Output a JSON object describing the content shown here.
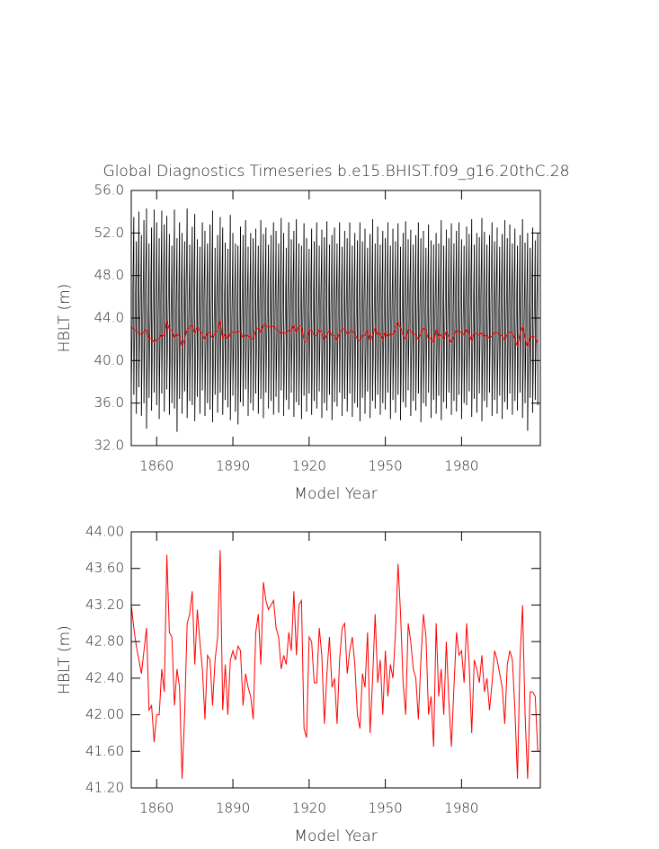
{
  "chart_data": [
    {
      "type": "line",
      "title": "Global Diagnostics Timeseries b.e15.BHIST.f09_g16.20thC.28",
      "ylabel": "HBLT (m)",
      "xlabel": "Model Year",
      "xlim": [
        1850,
        2011
      ],
      "xticks": [
        1860,
        1890,
        1920,
        1950,
        1980
      ],
      "ylim": [
        32,
        56
      ],
      "yticks": [
        {
          "value": 32,
          "label": "32.0"
        },
        {
          "value": 36,
          "label": "36.0"
        },
        {
          "value": 40,
          "label": "40.0"
        },
        {
          "value": 44,
          "label": "44.0"
        },
        {
          "value": 48,
          "label": "48.0"
        },
        {
          "value": 52,
          "label": "52.0"
        },
        {
          "value": 56,
          "label": "56.0"
        }
      ],
      "x": [
        1850,
        1851,
        1852,
        1853,
        1854,
        1855,
        1856,
        1857,
        1858,
        1859,
        1860,
        1861,
        1862,
        1863,
        1864,
        1865,
        1866,
        1867,
        1868,
        1869,
        1870,
        1871,
        1872,
        1873,
        1874,
        1875,
        1876,
        1877,
        1878,
        1879,
        1880,
        1881,
        1882,
        1883,
        1884,
        1885,
        1886,
        1887,
        1888,
        1889,
        1890,
        1891,
        1892,
        1893,
        1894,
        1895,
        1896,
        1897,
        1898,
        1899,
        1900,
        1901,
        1902,
        1903,
        1904,
        1905,
        1906,
        1907,
        1908,
        1909,
        1910,
        1911,
        1912,
        1913,
        1914,
        1915,
        1916,
        1917,
        1918,
        1919,
        1920,
        1921,
        1922,
        1923,
        1924,
        1925,
        1926,
        1927,
        1928,
        1929,
        1930,
        1931,
        1932,
        1933,
        1934,
        1935,
        1936,
        1937,
        1938,
        1939,
        1940,
        1941,
        1942,
        1943,
        1944,
        1945,
        1946,
        1947,
        1948,
        1949,
        1950,
        1951,
        1952,
        1953,
        1954,
        1955,
        1956,
        1957,
        1958,
        1959,
        1960,
        1961,
        1962,
        1963,
        1964,
        1965,
        1966,
        1967,
        1968,
        1969,
        1970,
        1971,
        1972,
        1973,
        1974,
        1975,
        1976,
        1977,
        1978,
        1979,
        1980,
        1981,
        1982,
        1983,
        1984,
        1985,
        1986,
        1987,
        1988,
        1989,
        1990,
        1991,
        1992,
        1993,
        1994,
        1995,
        1996,
        1997,
        1998,
        1999,
        2000,
        2001,
        2002,
        2003,
        2004,
        2005,
        2006,
        2007,
        2008,
        2009,
        2010
      ],
      "series": [
        {
          "color": "#000000",
          "max": [
            50.5,
            53.5,
            51.2,
            54.0,
            51.8,
            53.2,
            54.3,
            51.0,
            52.5,
            54.2,
            53.0,
            51.5,
            54.1,
            52.8,
            53.6,
            51.9,
            50.8,
            54.2,
            51.5,
            53.0,
            52.0,
            51.2,
            54.3,
            50.9,
            52.6,
            53.8,
            51.4,
            50.7,
            53.0,
            52.2,
            51.0,
            52.8,
            54.1,
            50.6,
            51.8,
            53.5,
            52.5,
            51.1,
            50.5,
            53.7,
            52.0,
            51.0,
            50.8,
            52.6,
            51.8,
            53.2,
            50.7,
            52.0,
            51.5,
            52.4,
            50.8,
            53.2,
            51.9,
            52.5,
            50.9,
            51.8,
            53.0,
            52.2,
            51.0,
            53.4,
            52.0,
            50.6,
            53.0,
            51.4,
            52.2,
            53.3,
            51.0,
            50.8,
            52.9,
            51.5,
            50.5,
            52.4,
            51.2,
            53.0,
            50.8,
            52.3,
            51.6,
            53.1,
            50.9,
            51.8,
            52.5,
            51.0,
            53.0,
            50.7,
            52.2,
            51.5,
            53.0,
            50.8,
            52.0,
            51.3,
            53.0,
            51.2,
            52.4,
            50.6,
            51.9,
            53.3,
            51.0,
            52.6,
            50.9,
            52.2,
            51.5,
            53.0,
            50.8,
            52.4,
            51.2,
            52.9,
            50.7,
            52.0,
            53.1,
            51.4,
            52.3,
            50.9,
            51.8,
            53.0,
            51.5,
            52.2,
            50.6,
            52.8,
            51.3,
            50.9,
            52.0,
            51.0,
            53.2,
            50.8,
            52.3,
            51.5,
            52.9,
            51.0,
            52.2,
            53.0,
            51.4,
            50.8,
            52.6,
            51.9,
            53.3,
            50.9,
            52.0,
            51.6,
            53.4,
            52.1,
            50.9,
            51.8,
            53.0,
            51.2,
            52.5,
            50.7,
            51.9,
            53.2,
            51.5,
            52.8,
            51.0,
            52.4,
            50.8,
            51.8,
            53.3,
            51.1,
            52.0,
            50.6,
            52.5,
            51.3,
            52.0
          ],
          "min": [
            36.2,
            36.8,
            35.0,
            37.5,
            34.8,
            36.0,
            33.6,
            36.5,
            35.3,
            37.0,
            35.8,
            34.5,
            36.9,
            35.2,
            37.3,
            34.9,
            36.0,
            35.5,
            33.3,
            36.4,
            35.0,
            37.1,
            34.6,
            36.2,
            35.8,
            34.3,
            36.6,
            35.0,
            37.2,
            34.8,
            36.0,
            35.4,
            34.2,
            36.8,
            35.1,
            37.0,
            34.9,
            36.3,
            35.6,
            34.4,
            36.7,
            35.2,
            34.0,
            36.1,
            35.7,
            37.3,
            34.8,
            36.0,
            35.3,
            36.9,
            35.0,
            36.4,
            34.6,
            37.0,
            35.5,
            36.2,
            34.9,
            36.6,
            35.1,
            37.2,
            34.8,
            36.3,
            35.4,
            37.0,
            34.7,
            36.1,
            35.8,
            34.5,
            36.7,
            35.2,
            36.9,
            34.9,
            36.2,
            35.5,
            37.1,
            34.6,
            36.0,
            35.3,
            36.8,
            34.4,
            36.1,
            35.7,
            37.0,
            34.8,
            36.4,
            35.2,
            36.9,
            34.7,
            36.0,
            35.6,
            34.3,
            36.5,
            35.0,
            37.1,
            34.6,
            36.2,
            35.5,
            36.8,
            34.9,
            36.0,
            35.4,
            37.0,
            34.5,
            36.3,
            35.1,
            36.8,
            34.4,
            36.1,
            35.6,
            37.2,
            34.8,
            36.2,
            35.3,
            36.9,
            34.2,
            36.0,
            35.7,
            37.0,
            34.6,
            36.3,
            35.0,
            36.7,
            34.4,
            36.1,
            35.5,
            37.0,
            34.9,
            36.2,
            35.2,
            36.8,
            34.5,
            36.0,
            35.8,
            37.1,
            34.7,
            36.4,
            35.1,
            36.9,
            34.3,
            36.2,
            35.6,
            37.0,
            34.8,
            36.3,
            35.0,
            36.7,
            34.5,
            36.1,
            35.4,
            36.9,
            34.9,
            36.2,
            35.3,
            37.0,
            34.6,
            36.0,
            33.4,
            36.5,
            35.1,
            36.3,
            35.8
          ]
        },
        {
          "color": "#ff0000",
          "values": [
            43.2,
            42.95,
            42.75,
            42.6,
            42.45,
            42.7,
            42.95,
            42.05,
            42.1,
            41.7,
            42.0,
            42.0,
            42.5,
            42.25,
            43.75,
            42.9,
            42.85,
            42.1,
            42.5,
            42.3,
            41.3,
            42.0,
            43.0,
            43.1,
            43.35,
            42.55,
            43.15,
            42.8,
            42.5,
            41.95,
            42.65,
            42.6,
            42.1,
            42.6,
            42.85,
            43.8,
            42.05,
            42.55,
            42.0,
            42.6,
            42.7,
            42.6,
            42.75,
            42.7,
            42.1,
            42.45,
            42.3,
            42.2,
            41.95,
            42.9,
            43.1,
            42.55,
            43.45,
            43.25,
            43.15,
            43.2,
            43.25,
            42.95,
            42.85,
            42.5,
            42.65,
            42.55,
            42.9,
            42.7,
            43.35,
            42.65,
            43.2,
            43.25,
            41.85,
            41.75,
            42.85,
            42.8,
            42.35,
            42.35,
            42.95,
            42.65,
            41.9,
            42.45,
            42.85,
            42.3,
            42.4,
            41.9,
            42.6,
            42.95,
            43.0,
            42.45,
            42.7,
            42.85,
            42.55,
            42.0,
            41.85,
            42.45,
            42.3,
            42.9,
            41.8,
            42.4,
            43.1,
            42.35,
            42.6,
            42.0,
            42.7,
            42.2,
            42.55,
            42.4,
            42.9,
            43.65,
            43.1,
            42.35,
            42.0,
            43.0,
            42.8,
            42.5,
            42.4,
            41.95,
            42.6,
            43.1,
            42.85,
            42.0,
            42.2,
            41.65,
            43.0,
            42.2,
            42.5,
            42.0,
            42.8,
            42.15,
            41.65,
            42.3,
            42.9,
            42.65,
            42.7,
            42.35,
            43.0,
            42.55,
            41.8,
            42.6,
            42.5,
            42.35,
            42.65,
            42.25,
            42.4,
            42.05,
            42.35,
            42.7,
            42.6,
            42.45,
            42.3,
            41.9,
            42.55,
            42.7,
            42.6,
            42.05,
            41.3,
            42.6,
            43.2,
            42.0,
            41.3,
            42.25,
            42.25,
            42.2,
            41.6
          ]
        }
      ]
    },
    {
      "type": "line",
      "ylabel": "HBLT (m)",
      "xlabel": "Model Year",
      "xlim": [
        1850,
        2011
      ],
      "xticks": [
        1860,
        1890,
        1920,
        1950,
        1980
      ],
      "ylim": [
        41.2,
        44
      ],
      "yticks": [
        {
          "value": 41.2,
          "label": "41.20"
        },
        {
          "value": 41.6,
          "label": "41.60"
        },
        {
          "value": 42,
          "label": "42.00"
        },
        {
          "value": 42.4,
          "label": "42.40"
        },
        {
          "value": 42.8,
          "label": "42.80"
        },
        {
          "value": 43.2,
          "label": "43.20"
        },
        {
          "value": 43.6,
          "label": "43.60"
        },
        {
          "value": 44,
          "label": "44.00"
        }
      ],
      "x": [
        1850,
        1851,
        1852,
        1853,
        1854,
        1855,
        1856,
        1857,
        1858,
        1859,
        1860,
        1861,
        1862,
        1863,
        1864,
        1865,
        1866,
        1867,
        1868,
        1869,
        1870,
        1871,
        1872,
        1873,
        1874,
        1875,
        1876,
        1877,
        1878,
        1879,
        1880,
        1881,
        1882,
        1883,
        1884,
        1885,
        1886,
        1887,
        1888,
        1889,
        1890,
        1891,
        1892,
        1893,
        1894,
        1895,
        1896,
        1897,
        1898,
        1899,
        1900,
        1901,
        1902,
        1903,
        1904,
        1905,
        1906,
        1907,
        1908,
        1909,
        1910,
        1911,
        1912,
        1913,
        1914,
        1915,
        1916,
        1917,
        1918,
        1919,
        1920,
        1921,
        1922,
        1923,
        1924,
        1925,
        1926,
        1927,
        1928,
        1929,
        1930,
        1931,
        1932,
        1933,
        1934,
        1935,
        1936,
        1937,
        1938,
        1939,
        1940,
        1941,
        1942,
        1943,
        1944,
        1945,
        1946,
        1947,
        1948,
        1949,
        1950,
        1951,
        1952,
        1953,
        1954,
        1955,
        1956,
        1957,
        1958,
        1959,
        1960,
        1961,
        1962,
        1963,
        1964,
        1965,
        1966,
        1967,
        1968,
        1969,
        1970,
        1971,
        1972,
        1973,
        1974,
        1975,
        1976,
        1977,
        1978,
        1979,
        1980,
        1981,
        1982,
        1983,
        1984,
        1985,
        1986,
        1987,
        1988,
        1989,
        1990,
        1991,
        1992,
        1993,
        1994,
        1995,
        1996,
        1997,
        1998,
        1999,
        2000,
        2001,
        2002,
        2003,
        2004,
        2005,
        2006,
        2007,
        2008,
        2009,
        2010
      ],
      "series": [
        {
          "color": "#ff0000",
          "values": [
            43.2,
            42.95,
            42.75,
            42.6,
            42.45,
            42.7,
            42.95,
            42.05,
            42.1,
            41.7,
            42.0,
            42.0,
            42.5,
            42.25,
            43.75,
            42.9,
            42.85,
            42.1,
            42.5,
            42.3,
            41.3,
            42.0,
            43.0,
            43.1,
            43.35,
            42.55,
            43.15,
            42.8,
            42.5,
            41.95,
            42.65,
            42.6,
            42.1,
            42.6,
            42.85,
            43.8,
            42.05,
            42.55,
            42.0,
            42.6,
            42.7,
            42.6,
            42.75,
            42.7,
            42.1,
            42.45,
            42.3,
            42.2,
            41.95,
            42.9,
            43.1,
            42.55,
            43.45,
            43.25,
            43.15,
            43.2,
            43.25,
            42.95,
            42.85,
            42.5,
            42.65,
            42.55,
            42.9,
            42.7,
            43.35,
            42.65,
            43.2,
            43.25,
            41.85,
            41.75,
            42.85,
            42.8,
            42.35,
            42.35,
            42.95,
            42.65,
            41.9,
            42.45,
            42.85,
            42.3,
            42.4,
            41.9,
            42.6,
            42.95,
            43.0,
            42.45,
            42.7,
            42.85,
            42.55,
            42.0,
            41.85,
            42.45,
            42.3,
            42.9,
            41.8,
            42.4,
            43.1,
            42.35,
            42.6,
            42.0,
            42.7,
            42.2,
            42.55,
            42.4,
            42.9,
            43.65,
            43.1,
            42.35,
            42.0,
            43.0,
            42.8,
            42.5,
            42.4,
            41.95,
            42.6,
            43.1,
            42.85,
            42.0,
            42.2,
            41.65,
            43.0,
            42.2,
            42.5,
            42.0,
            42.8,
            42.15,
            41.65,
            42.3,
            42.9,
            42.65,
            42.7,
            42.35,
            43.0,
            42.55,
            41.8,
            42.6,
            42.5,
            42.35,
            42.65,
            42.25,
            42.4,
            42.05,
            42.35,
            42.7,
            42.6,
            42.45,
            42.3,
            41.9,
            42.55,
            42.7,
            42.6,
            42.05,
            41.3,
            42.6,
            43.2,
            42.0,
            41.3,
            42.25,
            42.25,
            42.2,
            41.6
          ]
        }
      ]
    }
  ]
}
